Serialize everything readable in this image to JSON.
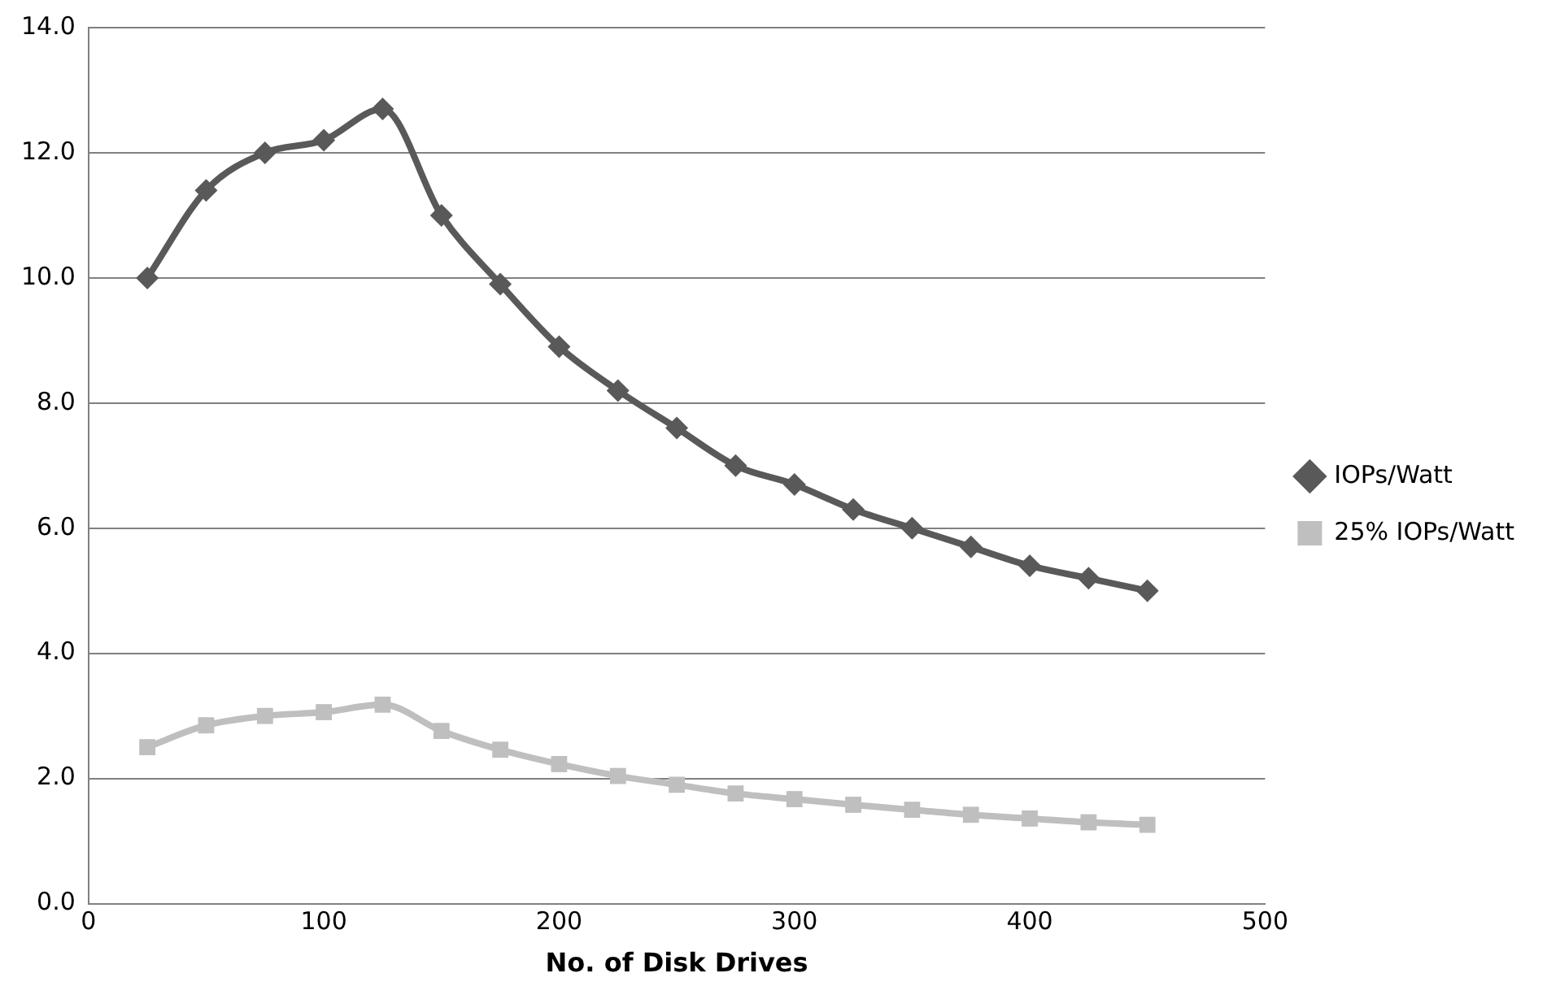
{
  "chart_data": {
    "type": "line",
    "xlabel": "No. of Disk Drives",
    "x": [
      25,
      50,
      75,
      100,
      125,
      150,
      175,
      200,
      225,
      250,
      275,
      300,
      325,
      350,
      375,
      400,
      425,
      450
    ],
    "series": [
      {
        "name": "IOPs/Watt",
        "color": "#595959",
        "marker": "diamond",
        "values": [
          10.0,
          11.4,
          12.0,
          12.2,
          12.7,
          11.0,
          9.9,
          8.9,
          8.2,
          7.6,
          7.0,
          6.7,
          6.3,
          6.0,
          5.7,
          5.4,
          5.2,
          5.0
        ]
      },
      {
        "name": "25% IOPs/Watt",
        "color": "#bfbfbf",
        "marker": "square",
        "values": [
          2.5,
          2.85,
          3.0,
          3.06,
          3.18,
          2.76,
          2.46,
          2.23,
          2.04,
          1.9,
          1.76,
          1.67,
          1.58,
          1.5,
          1.42,
          1.36,
          1.3,
          1.26
        ]
      }
    ],
    "xlim": [
      0,
      500
    ],
    "xticks": [
      0,
      100,
      200,
      300,
      400,
      500
    ],
    "ylim": [
      0,
      14
    ],
    "yticks": [
      {
        "value": 0,
        "label": "0.0"
      },
      {
        "value": 2,
        "label": "2.0"
      },
      {
        "value": 4,
        "label": "4.0"
      },
      {
        "value": 6,
        "label": "6.0"
      },
      {
        "value": 8,
        "label": "8.0"
      },
      {
        "value": 10,
        "label": "10.0"
      },
      {
        "value": 12,
        "label": "12.0"
      },
      {
        "value": 14,
        "label": "14.0"
      }
    ],
    "grid": "y",
    "legend": "right"
  }
}
